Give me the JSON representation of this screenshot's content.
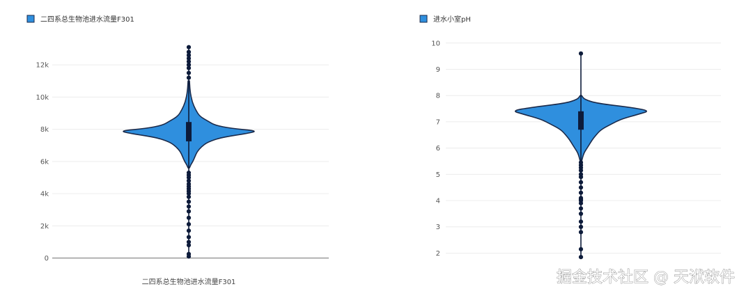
{
  "colors": {
    "violin_fill": "#2f8fde",
    "violin_stroke": "#1b2a4a",
    "box": "#0d1b3a",
    "grid": "#ececec",
    "zeroline": "#8a8a8a"
  },
  "watermark": "掘金技术社区 @ 天洑软件",
  "chart_data": [
    {
      "type": "violin",
      "legend": "二四系总生物池进水流量F301",
      "xlabel": "二四系总生物池进水流量F301",
      "yticks": [
        0,
        2000,
        4000,
        6000,
        8000,
        10000,
        12000
      ],
      "ytick_labels": [
        "0",
        "2k",
        "4k",
        "6k",
        "8k",
        "10k",
        "12k"
      ],
      "ylim": [
        -150,
        13000
      ],
      "grid": true,
      "box": {
        "q1": 7250,
        "median": 7900,
        "q3": 8450,
        "whisker_low": 100,
        "whisker_high": 13100
      },
      "density": [
        [
          5600,
          0.01
        ],
        [
          5800,
          0.03
        ],
        [
          6000,
          0.06
        ],
        [
          6300,
          0.09
        ],
        [
          6600,
          0.12
        ],
        [
          6900,
          0.18
        ],
        [
          7200,
          0.27
        ],
        [
          7500,
          0.48
        ],
        [
          7750,
          0.86
        ],
        [
          7900,
          1.0
        ],
        [
          8050,
          0.62
        ],
        [
          8250,
          0.38
        ],
        [
          8500,
          0.28
        ],
        [
          8800,
          0.16
        ],
        [
          9200,
          0.1
        ],
        [
          9700,
          0.05
        ],
        [
          10300,
          0.02
        ],
        [
          11000,
          0.01
        ]
      ],
      "outliers": [
        100,
        250,
        800,
        1000,
        1300,
        1700,
        2100,
        2500,
        2900,
        3200,
        3500,
        3800,
        4000,
        4150,
        4300,
        4450,
        4600,
        4800,
        5000,
        5150,
        5300,
        11200,
        11500,
        11800,
        12000,
        12200,
        12400,
        12600,
        12800,
        13100
      ]
    },
    {
      "type": "violin",
      "legend": "进水小室pH",
      "xlabel": "",
      "yticks": [
        2,
        3,
        4,
        5,
        6,
        7,
        8,
        9,
        10
      ],
      "ytick_labels": [
        "2",
        "3",
        "4",
        "5",
        "6",
        "7",
        "8",
        "9",
        "10"
      ],
      "ylim": [
        1.8,
        10.1
      ],
      "grid": true,
      "box": {
        "q1": 6.7,
        "median": 7.0,
        "q3": 7.4,
        "whisker_low": 1.85,
        "whisker_high": 9.6
      },
      "density": [
        [
          5.5,
          0.01
        ],
        [
          5.8,
          0.04
        ],
        [
          6.0,
          0.09
        ],
        [
          6.3,
          0.16
        ],
        [
          6.5,
          0.22
        ],
        [
          6.7,
          0.29
        ],
        [
          6.9,
          0.43
        ],
        [
          7.1,
          0.58
        ],
        [
          7.3,
          0.85
        ],
        [
          7.42,
          1.0
        ],
        [
          7.55,
          0.72
        ],
        [
          7.7,
          0.24
        ],
        [
          7.85,
          0.05
        ],
        [
          8.0,
          0.01
        ]
      ],
      "outliers": [
        1.85,
        2.15,
        2.8,
        3.0,
        3.2,
        3.5,
        3.7,
        3.9,
        4.0,
        4.05,
        4.1,
        4.3,
        4.5,
        4.7,
        4.9,
        5.0,
        5.15,
        5.25,
        5.35,
        5.45,
        9.6
      ]
    }
  ]
}
